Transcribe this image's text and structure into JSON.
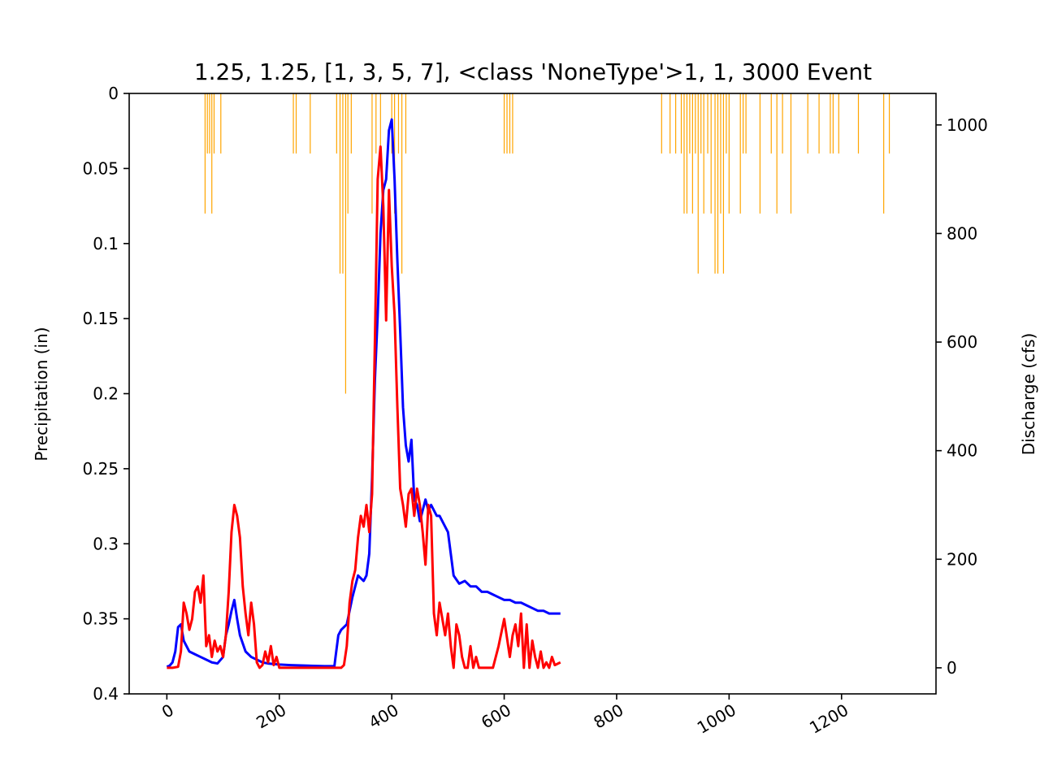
{
  "chart_data": {
    "type": "line",
    "title": "1.25, 1.25, [1, 3, 5, 7], <class 'NoneType'>1, 1, 3000 Event",
    "xlabel": "",
    "ylabel_left": "Precipitation (in)",
    "ylabel_right": "Discharge (cfs)",
    "xlim": [
      -67,
      1368
    ],
    "x_ticks": [
      0,
      200,
      400,
      600,
      800,
      1000,
      1200
    ],
    "y_left_lim": [
      0,
      0.4
    ],
    "y_left_inverted": true,
    "y_left_ticks": [
      0,
      0.05,
      0.1,
      0.15,
      0.2,
      0.25,
      0.3,
      0.35,
      0.4
    ],
    "y_left_tick_labels": [
      "0",
      "0.05",
      "0.1",
      "0.15",
      "0.2",
      "0.25",
      "0.3",
      "0.35",
      "0.4"
    ],
    "y_right_lim": [
      -48,
      1058
    ],
    "y_right_ticks": [
      0,
      200,
      400,
      600,
      800,
      1000
    ],
    "grid": false,
    "legend": "none",
    "colors": {
      "precipitation": "#ffa500",
      "series_1": "#0000ff",
      "series_2": "#ff0000"
    },
    "precipitation": {
      "axis": "left",
      "style": "bars-from-top",
      "x": [
        68,
        72,
        76,
        80,
        84,
        96,
        225,
        230,
        255,
        302,
        308,
        313,
        318,
        322,
        328,
        365,
        372,
        380,
        400,
        405,
        412,
        418,
        425,
        600,
        605,
        610,
        615,
        880,
        895,
        905,
        915,
        920,
        925,
        930,
        935,
        940,
        945,
        950,
        955,
        962,
        968,
        975,
        980,
        985,
        990,
        995,
        1000,
        1020,
        1025,
        1030,
        1055,
        1075,
        1085,
        1095,
        1110,
        1140,
        1160,
        1180,
        1185,
        1195,
        1230,
        1275,
        1285
      ],
      "values": [
        0.08,
        0.04,
        0.04,
        0.08,
        0.04,
        0.04,
        0.04,
        0.04,
        0.04,
        0.04,
        0.12,
        0.12,
        0.2,
        0.08,
        0.04,
        0.08,
        0.04,
        0.04,
        0.04,
        0.08,
        0.04,
        0.12,
        0.04,
        0.04,
        0.04,
        0.04,
        0.04,
        0.04,
        0.04,
        0.04,
        0.04,
        0.08,
        0.08,
        0.04,
        0.08,
        0.04,
        0.12,
        0.04,
        0.08,
        0.04,
        0.08,
        0.12,
        0.12,
        0.08,
        0.12,
        0.04,
        0.08,
        0.08,
        0.04,
        0.04,
        0.08,
        0.04,
        0.08,
        0.04,
        0.08,
        0.04,
        0.04,
        0.04,
        0.04,
        0.04,
        0.04,
        0.08,
        0.04
      ]
    },
    "series": [
      {
        "axis": "right",
        "color": "#0000ff",
        "x": [
          0,
          5,
          10,
          15,
          20,
          25,
          30,
          40,
          50,
          60,
          70,
          80,
          90,
          100,
          105,
          110,
          115,
          120,
          125,
          130,
          140,
          150,
          160,
          170,
          180,
          200,
          220,
          250,
          280,
          298,
          300,
          305,
          310,
          320,
          330,
          340,
          350,
          355,
          360,
          365,
          370,
          375,
          380,
          385,
          390,
          395,
          400,
          405,
          410,
          415,
          420,
          425,
          430,
          435,
          440,
          445,
          450,
          460,
          465,
          470,
          475,
          480,
          485,
          490,
          500,
          510,
          520,
          530,
          540,
          550,
          560,
          570,
          580,
          590,
          600,
          610,
          620,
          630,
          640,
          650,
          660,
          670,
          680,
          690,
          700
        ],
        "values": [
          2,
          4,
          10,
          30,
          75,
          80,
          50,
          30,
          25,
          20,
          15,
          10,
          8,
          20,
          60,
          80,
          105,
          125,
          90,
          60,
          30,
          20,
          15,
          10,
          8,
          6,
          5,
          4,
          3,
          3,
          20,
          60,
          70,
          80,
          130,
          170,
          160,
          170,
          210,
          350,
          530,
          650,
          800,
          880,
          900,
          990,
          1010,
          900,
          750,
          620,
          480,
          410,
          380,
          420,
          310,
          300,
          270,
          310,
          290,
          300,
          290,
          280,
          280,
          270,
          250,
          170,
          155,
          160,
          150,
          150,
          140,
          140,
          135,
          130,
          125,
          125,
          120,
          120,
          115,
          110,
          105,
          105,
          100,
          100,
          100
        ]
      },
      {
        "axis": "right",
        "color": "#ff0000",
        "x": [
          0,
          10,
          20,
          25,
          30,
          35,
          40,
          45,
          50,
          55,
          60,
          65,
          70,
          75,
          80,
          85,
          90,
          95,
          100,
          105,
          110,
          115,
          120,
          125,
          130,
          135,
          140,
          145,
          150,
          155,
          160,
          165,
          170,
          175,
          180,
          185,
          190,
          195,
          200,
          220,
          240,
          260,
          280,
          300,
          305,
          310,
          315,
          320,
          325,
          330,
          335,
          340,
          345,
          350,
          355,
          360,
          365,
          370,
          375,
          380,
          385,
          390,
          395,
          400,
          405,
          410,
          415,
          420,
          425,
          430,
          435,
          440,
          445,
          450,
          455,
          460,
          465,
          470,
          475,
          480,
          485,
          490,
          495,
          500,
          505,
          510,
          515,
          520,
          525,
          530,
          535,
          540,
          545,
          550,
          555,
          560,
          570,
          580,
          590,
          600,
          610,
          615,
          620,
          625,
          630,
          635,
          640,
          645,
          650,
          655,
          660,
          665,
          670,
          675,
          680,
          685,
          690,
          700
        ],
        "values": [
          0,
          0,
          2,
          30,
          120,
          100,
          70,
          90,
          140,
          150,
          120,
          170,
          40,
          60,
          20,
          50,
          30,
          40,
          20,
          60,
          140,
          250,
          300,
          280,
          240,
          150,
          100,
          60,
          120,
          80,
          10,
          0,
          5,
          30,
          10,
          40,
          5,
          20,
          0,
          0,
          0,
          0,
          0,
          0,
          0,
          0,
          5,
          40,
          120,
          160,
          180,
          240,
          280,
          260,
          300,
          250,
          320,
          600,
          900,
          960,
          850,
          640,
          880,
          740,
          650,
          480,
          330,
          300,
          260,
          320,
          330,
          280,
          330,
          300,
          250,
          190,
          300,
          280,
          100,
          60,
          120,
          90,
          60,
          100,
          40,
          0,
          80,
          60,
          20,
          0,
          0,
          40,
          0,
          20,
          0,
          0,
          0,
          0,
          40,
          90,
          20,
          60,
          80,
          40,
          100,
          0,
          80,
          0,
          50,
          20,
          0,
          30,
          0,
          10,
          0,
          20,
          5,
          10
        ]
      }
    ]
  }
}
